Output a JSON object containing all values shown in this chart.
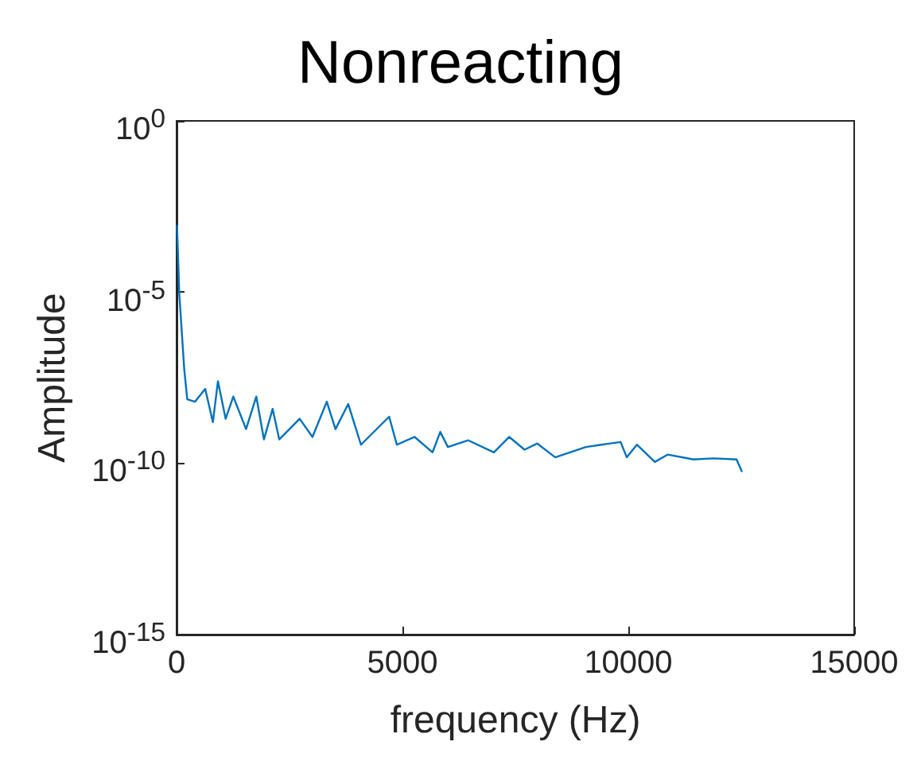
{
  "chart_data": {
    "type": "line",
    "title": "Nonreacting",
    "xlabel": "frequency (Hz)",
    "ylabel": "Amplitude",
    "log": "y",
    "grid": false,
    "marker": "none",
    "line_style": "solid",
    "xlim": [
      0,
      15000
    ],
    "xticks": [
      0,
      5000,
      10000,
      15000
    ],
    "ylim": [
      1e-15,
      1
    ],
    "yticks": [
      {
        "value": 1e-15,
        "label": "10$^{-15}$"
      },
      {
        "value": 1e-10,
        "label": "10$^{-10}$"
      },
      {
        "value": 1e-05,
        "label": "10$^{-5}$"
      },
      {
        "value": 1,
        "label": "10$^{0}$"
      }
    ],
    "series": [
      {
        "color": "#0072bd",
        "x": [
          10,
          60,
          170,
          237,
          407,
          634,
          804,
          916,
          1086,
          1256,
          1538,
          1765,
          1934,
          2127,
          2273,
          2725,
          3009,
          3325,
          3518,
          3800,
          4082,
          4706,
          4876,
          5270,
          5667,
          5837,
          6006,
          6458,
          7024,
          7364,
          7703,
          7985,
          8382,
          9060,
          9400,
          9830,
          9966,
          10190,
          10587,
          10869,
          11446,
          11887,
          12396,
          12510
        ],
        "values": [
          0.00087,
          9.1e-06,
          5.6e-08,
          7.4e-09,
          6.3e-09,
          1.5e-08,
          1.6e-09,
          2.5e-08,
          2e-09,
          8.9e-09,
          1e-09,
          8.9e-09,
          5e-10,
          3.9e-09,
          5e-10,
          2e-09,
          5.9e-10,
          6.3e-09,
          1e-09,
          5.4e-09,
          3.5e-10,
          2.3e-09,
          3.5e-10,
          5.9e-10,
          2.1e-10,
          8.3e-10,
          3e-10,
          4.7e-10,
          2.1e-10,
          5.9e-10,
          2.5e-10,
          3.8e-10,
          1.5e-10,
          3e-10,
          3.5e-10,
          4.2e-10,
          1.5e-10,
          3.5e-10,
          1.1e-10,
          1.8e-10,
          1.3e-10,
          1.4e-10,
          1.3e-10,
          5.9e-11
        ]
      }
    ]
  }
}
